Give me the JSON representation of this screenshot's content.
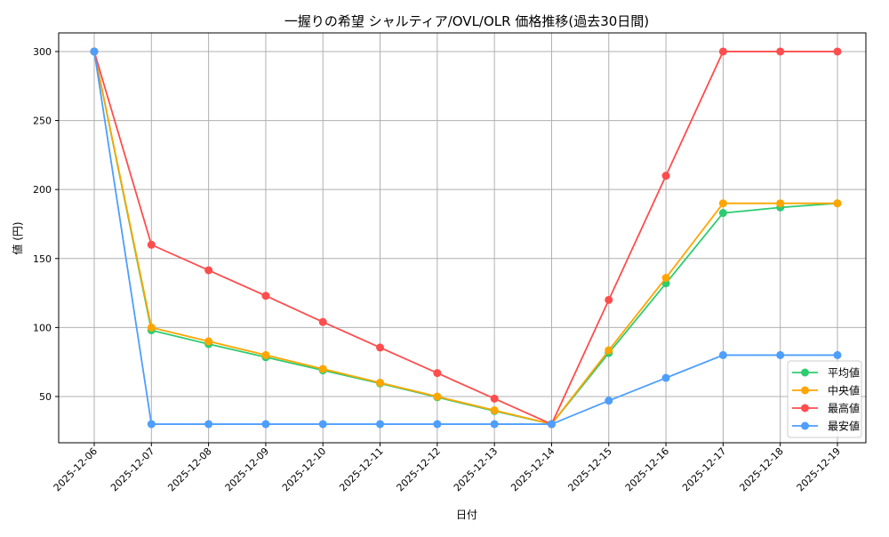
{
  "chart_data": {
    "type": "line",
    "title": "一握りの希望 シャルティア/OVL/OLR 価格推移(過去30日間)",
    "xlabel": "日付",
    "ylabel": "値 (円)",
    "ylim": [
      16.5,
      313.5
    ],
    "yticks": [
      50,
      100,
      150,
      200,
      250,
      300
    ],
    "grid": true,
    "legend_position": "bottom-right",
    "categories": [
      "2025-12-06",
      "2025-12-07",
      "2025-12-08",
      "2025-12-09",
      "2025-12-10",
      "2025-12-11",
      "2025-12-12",
      "2025-12-13",
      "2025-12-14",
      "2025-12-15",
      "2025-12-16",
      "2025-12-17",
      "2025-12-18",
      "2025-12-19"
    ],
    "series": [
      {
        "name": "平均値",
        "color": "#2ecc71",
        "values": [
          300,
          98,
          88,
          78.5,
          69,
          59.5,
          49.5,
          39.5,
          30,
          81.5,
          132,
          183,
          187,
          190
        ]
      },
      {
        "name": "中央値",
        "color": "#ffa500",
        "values": [
          300,
          100,
          90,
          80,
          70,
          60,
          50,
          40,
          30,
          83.5,
          136,
          190,
          190,
          190
        ]
      },
      {
        "name": "最高値",
        "color": "#ff4d4d",
        "values": [
          300,
          160,
          141.5,
          123,
          104,
          85.5,
          67,
          48.5,
          30,
          120,
          210,
          300,
          300,
          300
        ]
      },
      {
        "name": "最安値",
        "color": "#4d9eff",
        "values": [
          300,
          30,
          30,
          30,
          30,
          30,
          30,
          30,
          30,
          47,
          63.5,
          80,
          80,
          80
        ]
      }
    ]
  }
}
